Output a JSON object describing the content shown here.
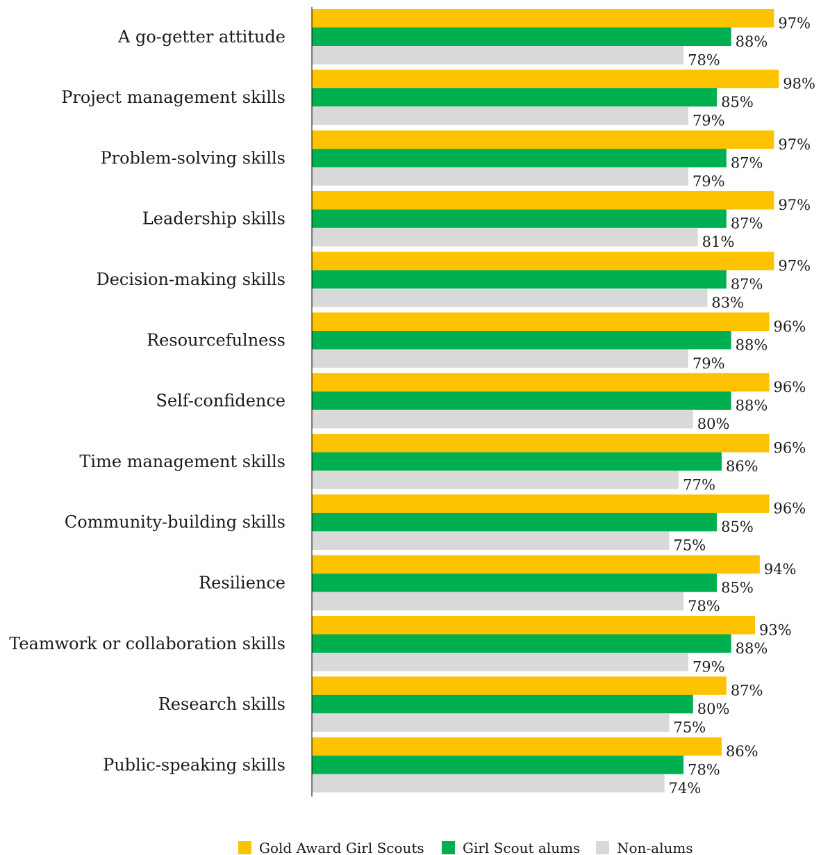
{
  "chart_data": {
    "type": "bar",
    "orientation": "horizontal",
    "categories": [
      "A go-getter attitude",
      "Project management skills",
      "Problem-solving skills",
      "Leadership skills",
      "Decision-making skills",
      "Resourcefulness",
      "Self-confidence",
      "Time management skills",
      "Community-building skills",
      "Resilience",
      "Teamwork or collaboration skills",
      "Research skills",
      "Public-speaking skills"
    ],
    "series": [
      {
        "name": "Gold Award Girl Scouts",
        "color": "#FDC300",
        "values": [
          97,
          98,
          97,
          97,
          97,
          96,
          96,
          96,
          96,
          94,
          93,
          87,
          86
        ],
        "labels": [
          "97%",
          "98%",
          "97%",
          "97%",
          "97%",
          "96%",
          "96%",
          "96%",
          "96%",
          "94%",
          "93%",
          "87%",
          "86%"
        ]
      },
      {
        "name": "Girl Scout alums",
        "color": "#00B050",
        "values": [
          88,
          85,
          87,
          87,
          87,
          88,
          88,
          86,
          85,
          85,
          88,
          80,
          78
        ],
        "labels": [
          "88%",
          "85%",
          "87%",
          "87%",
          "87%",
          "88%",
          "88%",
          "86%",
          "85%",
          "85%",
          "88%",
          "80%",
          "78%"
        ]
      },
      {
        "name": "Non-alums",
        "color": "#D9D9D9",
        "values": [
          78,
          79,
          79,
          81,
          83,
          79,
          80,
          77,
          75,
          78,
          79,
          75,
          74
        ],
        "labels": [
          "78%",
          "79%",
          "79%",
          "81%",
          "83%",
          "79%",
          "80%",
          "77%",
          "75%",
          "78%",
          "79%",
          "75%",
          "74%"
        ]
      }
    ],
    "xlim": [
      0,
      100
    ],
    "grid": false,
    "legend_position": "bottom"
  }
}
